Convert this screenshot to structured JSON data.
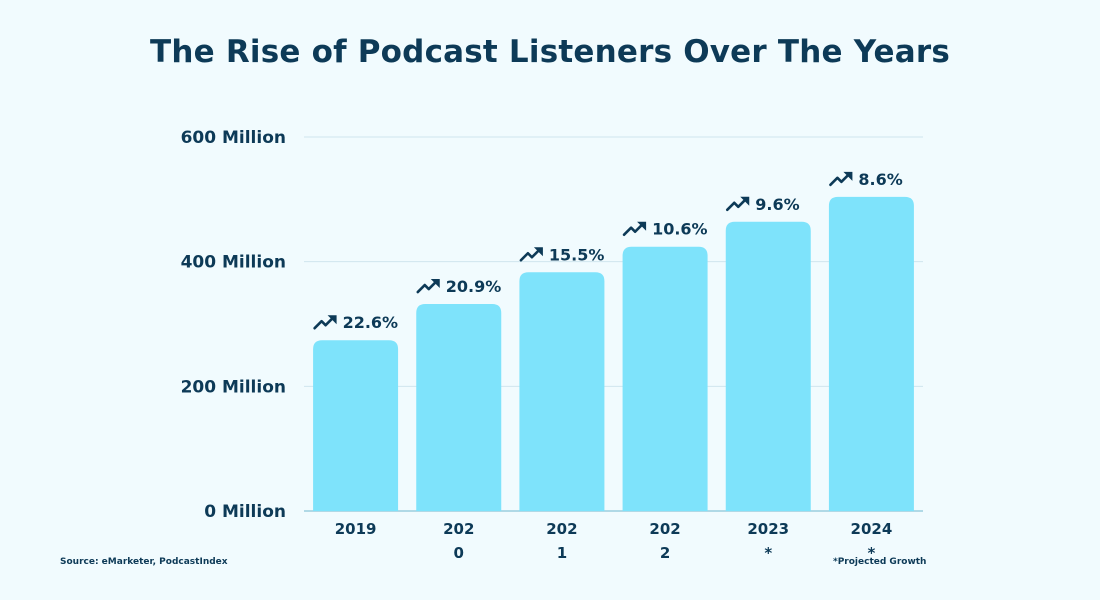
{
  "chart_data": {
    "type": "bar",
    "title": "The Rise of Podcast Listeners Over The Years",
    "categories": [
      "2019",
      "2020",
      "2021",
      "2022",
      "2023*",
      "2024*"
    ],
    "category_lines": [
      [
        "2019"
      ],
      [
        "202",
        "0"
      ],
      [
        "202",
        "1"
      ],
      [
        "202",
        "2"
      ],
      [
        "2023",
        "*"
      ],
      [
        "2024",
        "*"
      ]
    ],
    "values": [
      274,
      332,
      383,
      424,
      464,
      504
    ],
    "data_labels": [
      "22.6%",
      "20.9%",
      "15.5%",
      "10.6%",
      "9.6%",
      "8.6%"
    ],
    "data_label_icon": "trending-up-arrow-icon",
    "yticks": [
      {
        "value": 0,
        "label": "0 Million"
      },
      {
        "value": 200,
        "label": "200 Million"
      },
      {
        "value": 400,
        "label": "400 Million"
      },
      {
        "value": 600,
        "label": "600 Million"
      }
    ],
    "ylim": [
      0,
      600
    ],
    "grid": true,
    "xlabel": "",
    "ylabel": "",
    "colors": {
      "bar": "#7ee3fb",
      "text": "#0d3a57",
      "grid": "#cfe6ee",
      "background": "#f1fbfe"
    }
  },
  "source": "Source: eMarketer, PodcastIndex",
  "footnote": "*Projected Growth"
}
